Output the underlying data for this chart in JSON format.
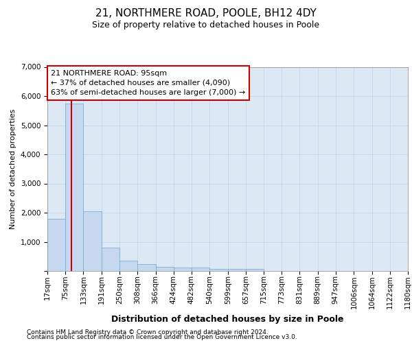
{
  "title": "21, NORTHMERE ROAD, POOLE, BH12 4DY",
  "subtitle": "Size of property relative to detached houses in Poole",
  "xlabel": "Distribution of detached houses by size in Poole",
  "ylabel": "Number of detached properties",
  "bin_edges": [
    17,
    75,
    133,
    191,
    250,
    308,
    366,
    424,
    482,
    540,
    599,
    657,
    715,
    773,
    831,
    889,
    947,
    1006,
    1064,
    1122,
    1180
  ],
  "bar_heights": [
    1780,
    5750,
    2050,
    800,
    360,
    230,
    130,
    110,
    110,
    80,
    80,
    60,
    0,
    0,
    0,
    0,
    0,
    0,
    0,
    0
  ],
  "bar_color": "#c5d8f0",
  "bar_edge_color": "#7aaed6",
  "property_size": 95,
  "property_line_color": "#cc0000",
  "ylim": [
    0,
    7000
  ],
  "yticks": [
    0,
    1000,
    2000,
    3000,
    4000,
    5000,
    6000,
    7000
  ],
  "annotation_line1": "21 NORTHMERE ROAD: 95sqm",
  "annotation_line2": "← 37% of detached houses are smaller (4,090)",
  "annotation_line3": "63% of semi-detached houses are larger (7,000) →",
  "annotation_box_edgecolor": "#cc0000",
  "grid_color": "#c8d8ec",
  "background_color": "#dde8f5",
  "footer_line1": "Contains HM Land Registry data © Crown copyright and database right 2024.",
  "footer_line2": "Contains public sector information licensed under the Open Government Licence v3.0.",
  "title_fontsize": 11,
  "subtitle_fontsize": 9,
  "ylabel_fontsize": 8,
  "xlabel_fontsize": 9,
  "tick_fontsize": 7.5,
  "footer_fontsize": 6.5,
  "annot_fontsize": 8
}
